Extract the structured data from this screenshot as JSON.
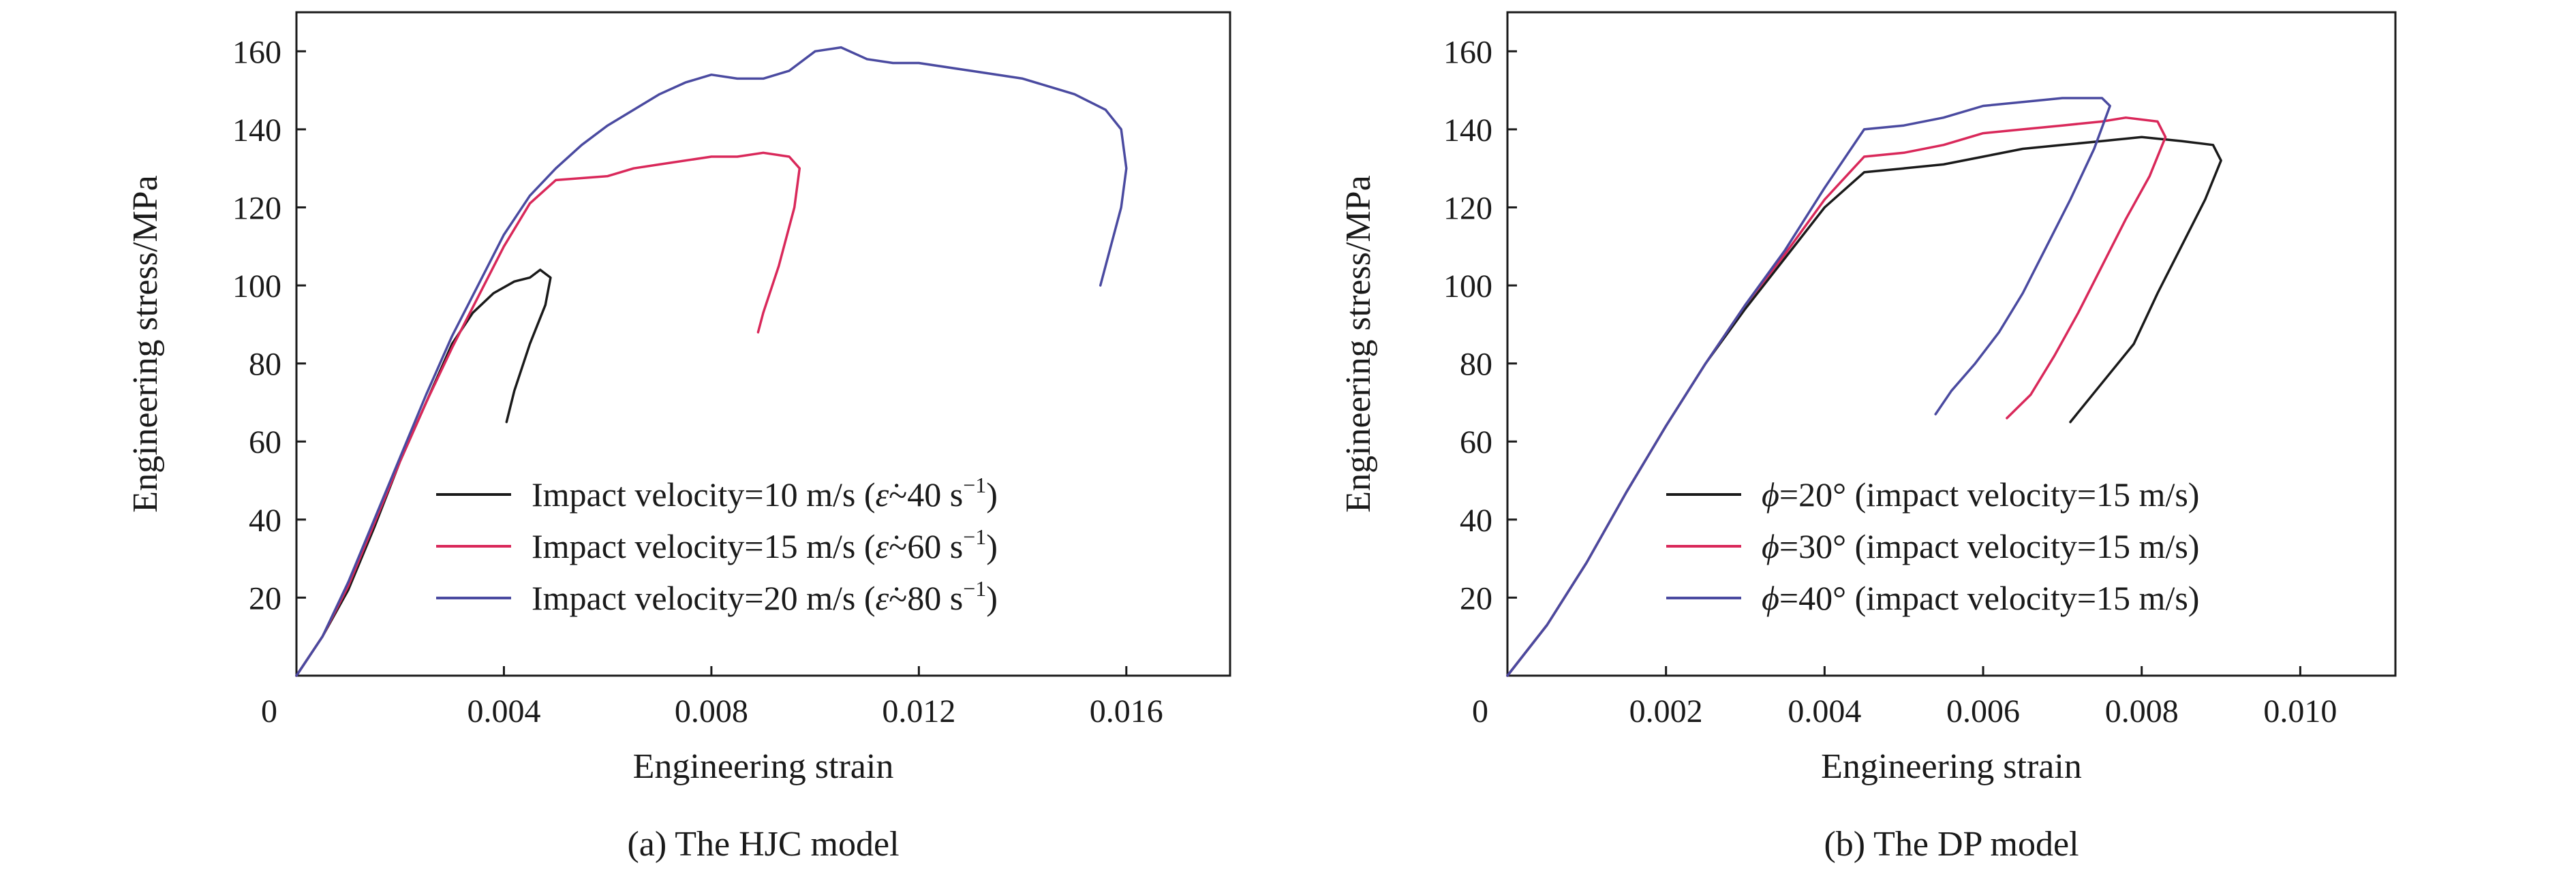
{
  "chart_data": [
    {
      "type": "line",
      "caption": "(a) The HJC model",
      "xlabel": "Engineering strain",
      "ylabel": "Engineering stress/MPa",
      "xlim": [
        0,
        0.018
      ],
      "ylim": [
        0,
        170
      ],
      "x_ticks": [
        0.004,
        0.008,
        0.012,
        0.016
      ],
      "x_tick_labels": [
        "0.004",
        "0.008",
        "0.012",
        "0.016"
      ],
      "y_ticks": [
        20,
        40,
        60,
        80,
        100,
        120,
        140,
        160
      ],
      "y_tick_labels": [
        "20",
        "40",
        "60",
        "80",
        "100",
        "120",
        "140",
        "160"
      ],
      "origin_label": "0",
      "grid": false,
      "legend_position": "lower-right",
      "series": [
        {
          "name": "Impact velocity=10 m/s (ε̇~40 s⁻¹)",
          "legend": {
            "prefix": "Impact velocity=10 m/s (",
            "symbol": "ε̇",
            "rate": "~40 s",
            "sup": "−1",
            "suffix": ")"
          },
          "color": "#1a1a1a",
          "x": [
            0,
            0.0005,
            0.001,
            0.0015,
            0.002,
            0.0025,
            0.003,
            0.0034,
            0.0038,
            0.0042,
            0.0045,
            0.0047,
            0.0048,
            0.0049,
            0.0048,
            0.0045,
            0.0042,
            0.00405
          ],
          "y": [
            0,
            10,
            22,
            38,
            55,
            70,
            85,
            93,
            98,
            101,
            102,
            104,
            103,
            102,
            95,
            85,
            73,
            65
          ]
        },
        {
          "name": "Impact velocity=15 m/s (ε̇~60 s⁻¹)",
          "legend": {
            "prefix": "Impact velocity=15 m/s (",
            "symbol": "ε̇",
            "rate": "~60 s",
            "sup": "−1",
            "suffix": ")"
          },
          "color": "#d9285a",
          "x": [
            0,
            0.0005,
            0.001,
            0.0015,
            0.002,
            0.0025,
            0.003,
            0.0035,
            0.004,
            0.0045,
            0.005,
            0.006,
            0.0065,
            0.007,
            0.008,
            0.0085,
            0.009,
            0.0095,
            0.0097,
            0.0096,
            0.0093,
            0.009,
            0.0089
          ],
          "y": [
            0,
            10,
            23,
            39,
            55,
            70,
            84,
            97,
            110,
            121,
            127,
            128,
            130,
            131,
            133,
            133,
            134,
            133,
            130,
            120,
            105,
            93,
            88
          ]
        },
        {
          "name": "Impact velocity=20 m/s (ε̇~80 s⁻¹)",
          "legend": {
            "prefix": "Impact velocity=20 m/s (",
            "symbol": "ε̇",
            "rate": "~80 s",
            "sup": "−1",
            "suffix": ")"
          },
          "color": "#4a4aa0",
          "x": [
            0,
            0.0005,
            0.001,
            0.0015,
            0.002,
            0.0025,
            0.003,
            0.0035,
            0.004,
            0.0045,
            0.005,
            0.0055,
            0.006,
            0.007,
            0.0075,
            0.008,
            0.0085,
            0.009,
            0.0095,
            0.01,
            0.0105,
            0.011,
            0.0115,
            0.012,
            0.013,
            0.014,
            0.015,
            0.0156,
            0.0159,
            0.016,
            0.0159,
            0.0157,
            0.0155
          ],
          "y": [
            0,
            10,
            24,
            40,
            56,
            72,
            87,
            100,
            113,
            123,
            130,
            136,
            141,
            149,
            152,
            154,
            153,
            153,
            155,
            160,
            161,
            158,
            157,
            157,
            155,
            153,
            149,
            145,
            140,
            130,
            120,
            110,
            100
          ]
        }
      ]
    },
    {
      "type": "line",
      "caption": "(b) The DP model",
      "xlabel": "Engineering strain",
      "ylabel": "Engineering stress/MPa",
      "xlim": [
        0,
        0.0112
      ],
      "ylim": [
        0,
        170
      ],
      "x_ticks": [
        0.002,
        0.004,
        0.006,
        0.008,
        0.01
      ],
      "x_tick_labels": [
        "0.002",
        "0.004",
        "0.006",
        "0.008",
        "0.010"
      ],
      "y_ticks": [
        20,
        40,
        60,
        80,
        100,
        120,
        140,
        160
      ],
      "y_tick_labels": [
        "20",
        "40",
        "60",
        "80",
        "100",
        "120",
        "140",
        "160"
      ],
      "origin_label": "0",
      "grid": false,
      "legend_position": "lower-right",
      "series": [
        {
          "name": "ϕ=20° (impact velocity=15 m/s)",
          "legend": {
            "symbol": "ϕ",
            "text": "=20° (impact velocity=15 m/s)"
          },
          "color": "#1a1a1a",
          "x": [
            0,
            0.0005,
            0.001,
            0.0015,
            0.002,
            0.0025,
            0.003,
            0.0035,
            0.004,
            0.0045,
            0.005,
            0.0055,
            0.006,
            0.0065,
            0.007,
            0.0075,
            0.008,
            0.0085,
            0.0089,
            0.009,
            0.0088,
            0.0085,
            0.0082,
            0.0079,
            0.0075,
            0.0071
          ],
          "y": [
            0,
            13,
            29,
            47,
            64,
            80,
            94,
            107,
            120,
            129,
            130,
            131,
            133,
            135,
            136,
            137,
            138,
            137,
            136,
            132,
            122,
            110,
            98,
            85,
            75,
            65
          ]
        },
        {
          "name": "ϕ=30° (impact velocity=15 m/s)",
          "legend": {
            "symbol": "ϕ",
            "text": "=30° (impact velocity=15 m/s)"
          },
          "color": "#d9285a",
          "x": [
            0,
            0.0005,
            0.001,
            0.0015,
            0.002,
            0.0025,
            0.003,
            0.0035,
            0.004,
            0.0045,
            0.005,
            0.0055,
            0.006,
            0.0065,
            0.007,
            0.0075,
            0.0078,
            0.0082,
            0.0083,
            0.0081,
            0.0078,
            0.0075,
            0.0072,
            0.0069,
            0.0066,
            0.0063
          ],
          "y": [
            0,
            13,
            29,
            47,
            64,
            80,
            95,
            108,
            122,
            133,
            134,
            136,
            139,
            140,
            141,
            142,
            143,
            142,
            138,
            128,
            117,
            105,
            93,
            82,
            72,
            66
          ]
        },
        {
          "name": "ϕ=40° (impact velocity=15 m/s)",
          "legend": {
            "symbol": "ϕ",
            "text": "=40° (impact velocity=15 m/s)"
          },
          "color": "#4a4aa0",
          "x": [
            0,
            0.0005,
            0.001,
            0.0015,
            0.002,
            0.0025,
            0.003,
            0.0035,
            0.004,
            0.0045,
            0.005,
            0.0055,
            0.006,
            0.0065,
            0.007,
            0.0075,
            0.0076,
            0.0074,
            0.0071,
            0.0068,
            0.0065,
            0.0062,
            0.0059,
            0.0056,
            0.0054
          ],
          "y": [
            0,
            13,
            29,
            47,
            64,
            80,
            95,
            109,
            125,
            140,
            141,
            143,
            146,
            147,
            148,
            148,
            146,
            135,
            122,
            110,
            98,
            88,
            80,
            73,
            67
          ]
        }
      ]
    }
  ]
}
